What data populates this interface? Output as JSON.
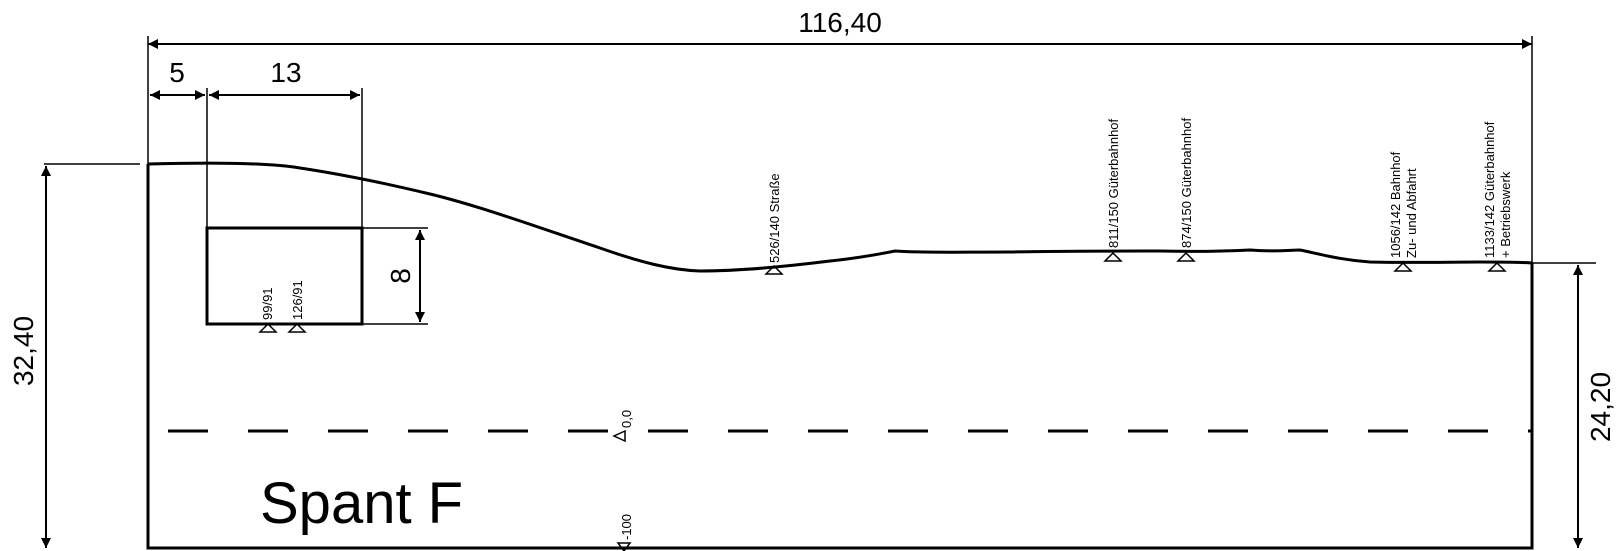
{
  "title": "Spant F",
  "dimensions": {
    "overall_width": "116,40",
    "left_offset": "5",
    "cutout_width": "13",
    "cutout_height": "8",
    "left_height": "32,40",
    "right_height": "24,20"
  },
  "levels": {
    "zero": "0,0",
    "minus_100": "-100"
  },
  "cutout_markers": [
    "99/91",
    "126/91"
  ],
  "profile_markers": [
    {
      "line1": "526/140 Straße"
    },
    {
      "line1": "811/150 Güterbahnhof"
    },
    {
      "line1": "874/150 Güterbahnhof"
    },
    {
      "line1": "1056/142 Bahnhof",
      "line2": "Zu- und Abfahrt"
    },
    {
      "line1": "1133/142 Güterbahnhof",
      "line2": "+ Betriebswerk"
    }
  ]
}
